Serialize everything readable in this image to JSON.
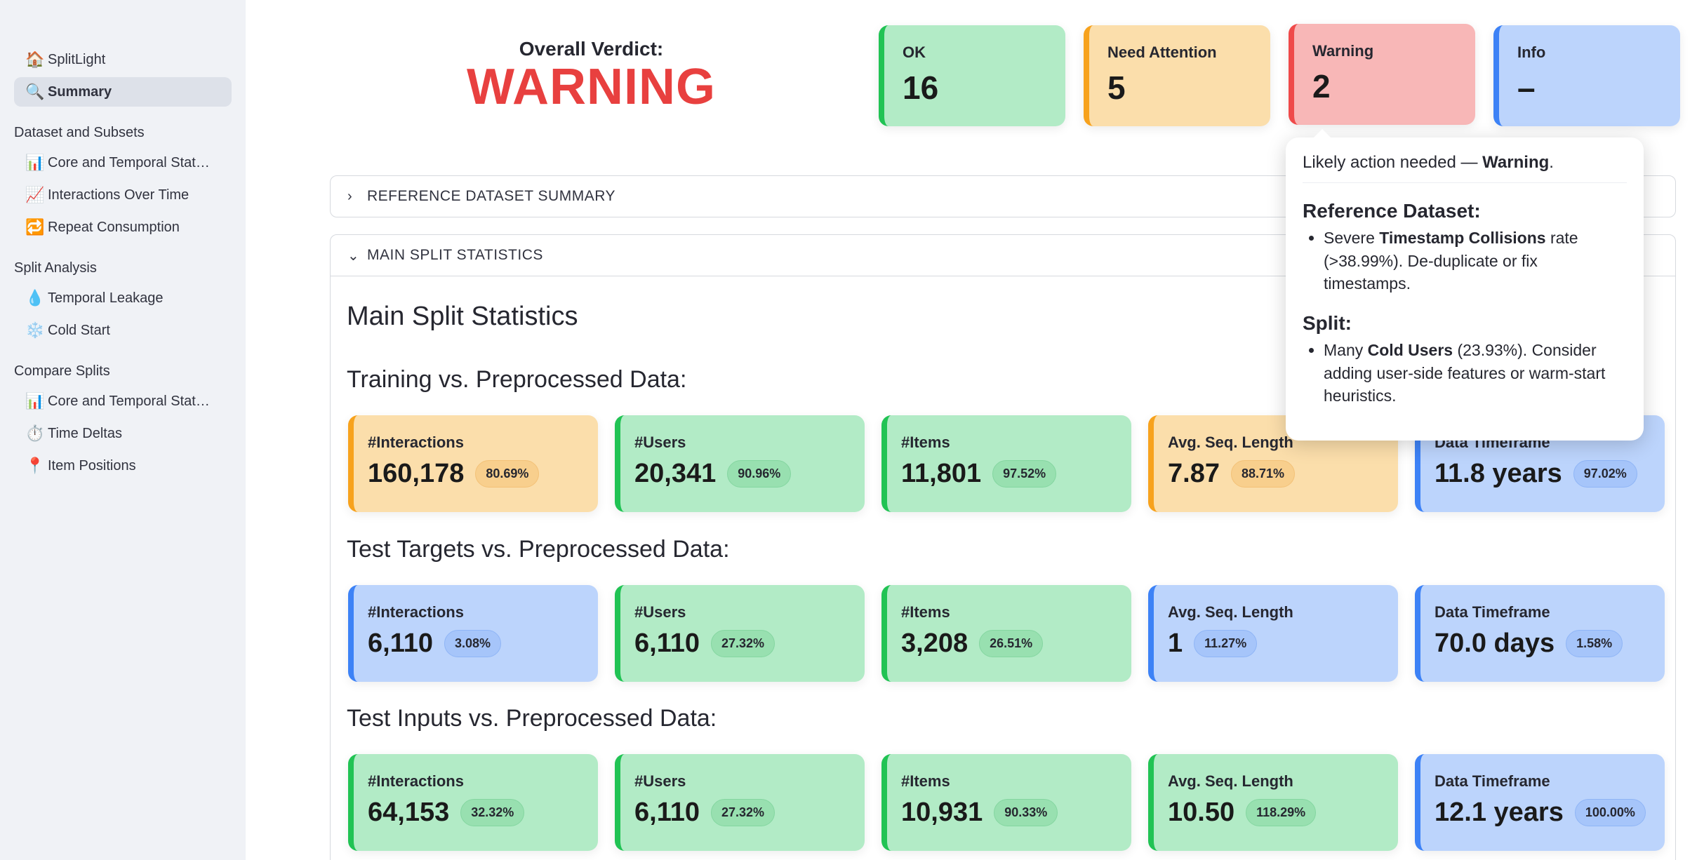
{
  "sidebar": {
    "top_items": [
      {
        "label": "SplitLight",
        "icon": "house-icon",
        "active": false
      },
      {
        "label": "Summary",
        "icon": "magnifier-icon",
        "active": true
      }
    ],
    "sections": [
      {
        "title": "Dataset and Subsets",
        "items": [
          {
            "label": "Core and Temporal Stat…",
            "icon": "bar-chart-icon"
          },
          {
            "label": "Interactions Over Time",
            "icon": "trend-chart-icon"
          },
          {
            "label": "Repeat Consumption",
            "icon": "repeat-icon"
          }
        ]
      },
      {
        "title": "Split Analysis",
        "items": [
          {
            "label": "Temporal Leakage",
            "icon": "droplet-icon"
          },
          {
            "label": "Cold Start",
            "icon": "snowflake-icon"
          }
        ]
      },
      {
        "title": "Compare Splits",
        "items": [
          {
            "label": "Core and Temporal Stat…",
            "icon": "bar-chart-icon"
          },
          {
            "label": "Time Deltas",
            "icon": "stopwatch-icon"
          },
          {
            "label": "Item Positions",
            "icon": "pushpin-icon"
          }
        ]
      }
    ]
  },
  "verdict": {
    "label": "Overall Verdict:",
    "value": "WARNING",
    "color": "#e8403f"
  },
  "status_cards": [
    {
      "label": "OK",
      "value": "16"
    },
    {
      "label": "Need Attention",
      "value": "5"
    },
    {
      "label": "Warning",
      "value": "2"
    },
    {
      "label": "Info",
      "value": "–"
    }
  ],
  "expanders": {
    "reference": "REFERENCE DATASET SUMMARY",
    "main": "MAIN SPLIT STATISTICS"
  },
  "main": {
    "title": "Main Split Statistics",
    "groups": [
      {
        "title": "Training vs. Preprocessed Data:",
        "metrics": [
          {
            "label": "#Interactions",
            "value": "160,178",
            "pct": "80.69%",
            "status": "orange"
          },
          {
            "label": "#Users",
            "value": "20,341",
            "pct": "90.96%",
            "status": "green"
          },
          {
            "label": "#Items",
            "value": "11,801",
            "pct": "97.52%",
            "status": "green"
          },
          {
            "label": "Avg. Seq. Length",
            "value": "7.87",
            "pct": "88.71%",
            "status": "orange"
          },
          {
            "label": "Data Timeframe",
            "value": "11.8 years",
            "pct": "97.02%",
            "status": "blue"
          }
        ]
      },
      {
        "title": "Test Targets vs. Preprocessed Data:",
        "metrics": [
          {
            "label": "#Interactions",
            "value": "6,110",
            "pct": "3.08%",
            "status": "blue"
          },
          {
            "label": "#Users",
            "value": "6,110",
            "pct": "27.32%",
            "status": "green"
          },
          {
            "label": "#Items",
            "value": "3,208",
            "pct": "26.51%",
            "status": "green"
          },
          {
            "label": "Avg. Seq. Length",
            "value": "1",
            "pct": "11.27%",
            "status": "blue"
          },
          {
            "label": "Data Timeframe",
            "value": "70.0 days",
            "pct": "1.58%",
            "status": "blue"
          }
        ]
      },
      {
        "title": "Test Inputs vs. Preprocessed Data:",
        "metrics": [
          {
            "label": "#Interactions",
            "value": "64,153",
            "pct": "32.32%",
            "status": "green"
          },
          {
            "label": "#Users",
            "value": "6,110",
            "pct": "27.32%",
            "status": "green"
          },
          {
            "label": "#Items",
            "value": "10,931",
            "pct": "90.33%",
            "status": "green"
          },
          {
            "label": "Avg. Seq. Length",
            "value": "10.50",
            "pct": "118.29%",
            "status": "green"
          },
          {
            "label": "Data Timeframe",
            "value": "12.1 years",
            "pct": "100.00%",
            "status": "blue"
          }
        ]
      }
    ]
  },
  "tooltip": {
    "intro": "Likely action needed — ",
    "intro_bold": "Warning",
    "intro_end": ".",
    "ref_head": "Reference Dataset:",
    "ref_pre": "Severe ",
    "ref_bold": "Timestamp Collisions",
    "ref_post": " rate (>38.99%). De-duplicate or fix timestamps.",
    "split_head": "Split:",
    "split_pre": "Many ",
    "split_bold": "Cold Users",
    "split_post": " (23.93%). Consider adding user-side features or warm-start heuristics."
  }
}
